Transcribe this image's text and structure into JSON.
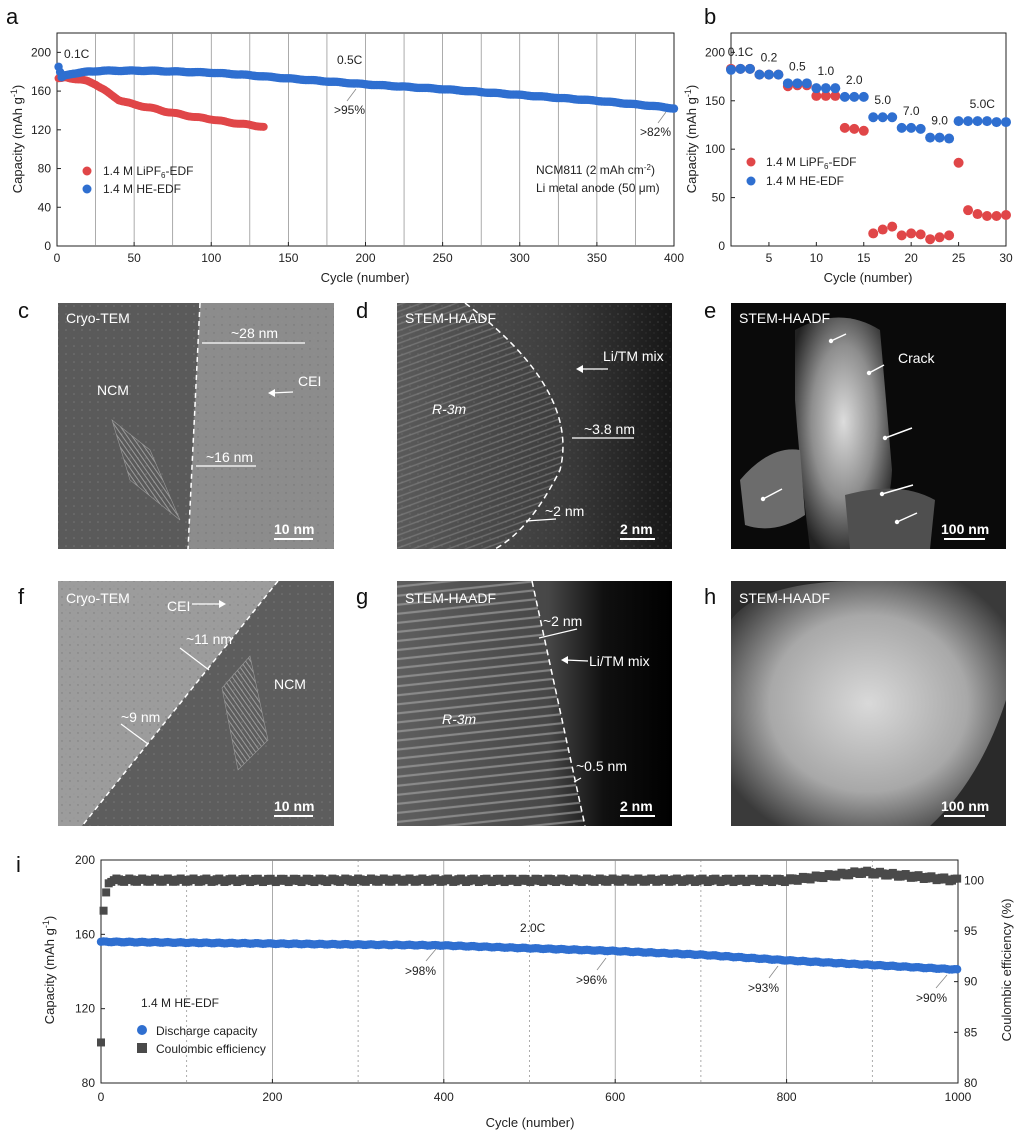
{
  "panels": {
    "a": {
      "label": "a",
      "xlabel": "Cycle (number)",
      "ylabel": "Capacity (mAh g",
      "ylabel_sup": "-1",
      "ylabel_end": ")",
      "xticks": [
        "0",
        "50",
        "100",
        "150",
        "200",
        "250",
        "300",
        "350",
        "400"
      ],
      "yticks": [
        "0",
        "40",
        "80",
        "120",
        "160",
        "200"
      ],
      "annotations": {
        "rate1": "0.1C",
        "rate2": "0.5C",
        "ret1": ">95%",
        "ret2": ">82%"
      },
      "cell_info_1": "NCM811 (2 mAh cm",
      "cell_info_1_sup": "-2",
      "cell_info_1_end": ")",
      "cell_info_2": "Li metal anode (50 μm)"
    },
    "b": {
      "label": "b",
      "xlabel": "Cycle (number)",
      "ylabel": "Capacity (mAh g",
      "ylabel_sup": "-1",
      "ylabel_end": ")",
      "xticks": [
        "5",
        "10",
        "15",
        "20",
        "25",
        "30"
      ],
      "yticks": [
        "0",
        "50",
        "100",
        "150",
        "200"
      ],
      "rates": [
        "0.1C",
        "0.2",
        "0.5",
        "1.0",
        "2.0",
        "5.0",
        "7.0",
        "9.0",
        "5.0C"
      ]
    },
    "c": {
      "label": "c",
      "mode": "Cryo-TEM",
      "material": "NCM",
      "layer": "CEI",
      "thick1": "~28 nm",
      "thick2": "~16 nm",
      "scale": "10 nm"
    },
    "d": {
      "label": "d",
      "mode": "STEM-HAADF",
      "phase": "R-3m",
      "mix": "Li/TM mix",
      "thick1": "~3.8 nm",
      "thick2": "~2 nm",
      "scale": "2 nm"
    },
    "e": {
      "label": "e",
      "mode": "STEM-HAADF",
      "feature": "Crack",
      "scale": "100 nm"
    },
    "f": {
      "label": "f",
      "mode": "Cryo-TEM",
      "material": "NCM",
      "layer": "CEI",
      "thick1": "~11 nm",
      "thick2": "~9 nm",
      "scale": "10 nm"
    },
    "g": {
      "label": "g",
      "mode": "STEM-HAADF",
      "phase": "R-3m",
      "mix": "Li/TM mix",
      "thick1": "~2 nm",
      "thick2": "~0.5 nm",
      "scale": "2 nm"
    },
    "h": {
      "label": "h",
      "mode": "STEM-HAADF",
      "scale": "100 nm"
    },
    "i": {
      "label": "i",
      "xlabel": "Cycle (number)",
      "ylabel": "Capacity (mAh g",
      "ylabel_sup": "-1",
      "ylabel_end": ")",
      "y2label": "Coulombic efficiency (%)",
      "xticks": [
        "0",
        "200",
        "400",
        "600",
        "800",
        "1000"
      ],
      "yticks": [
        "80",
        "120",
        "160",
        "200"
      ],
      "y2ticks": [
        "80",
        "85",
        "90",
        "95",
        "100"
      ],
      "rate": "2.0C",
      "electrolyte": "1.4 M HE-EDF",
      "legend_capacity": "Discharge capacity",
      "legend_ce": "Coulombic efficiency",
      "retentions": [
        ">98%",
        ">96%",
        ">93%",
        ">90%"
      ]
    }
  },
  "legend": {
    "lipf6": "1.4 M LiPF",
    "lipf6_sub": "6",
    "lipf6_end": "-EDF",
    "he": "1.4 M HE-EDF"
  },
  "colors": {
    "red": "#e04648",
    "blue": "#2f6fd0",
    "gray": "#4a4a4a"
  },
  "chart_data": [
    {
      "type": "scatter",
      "panel": "a",
      "xlabel": "Cycle (number)",
      "ylabel": "Capacity (mAh g-1)",
      "xlim": [
        0,
        400
      ],
      "ylim": [
        0,
        220
      ],
      "series": [
        {
          "name": "1.4 M LiPF6-EDF",
          "x": [
            1,
            3,
            5,
            10,
            15,
            20,
            25,
            30,
            35,
            40,
            50,
            60,
            70,
            80,
            90,
            100,
            110,
            120,
            130,
            134
          ],
          "y": [
            173,
            173,
            174,
            173,
            172,
            170,
            167,
            162,
            156,
            151,
            146,
            143,
            139,
            136,
            133,
            131,
            128,
            126,
            124,
            123
          ]
        },
        {
          "name": "1.4 M HE-EDF",
          "x": [
            1,
            3,
            5,
            10,
            20,
            30,
            40,
            50,
            60,
            80,
            100,
            120,
            150,
            200,
            250,
            300,
            350,
            390,
            400
          ],
          "y": [
            185,
            174,
            176,
            178,
            180,
            181,
            181,
            181,
            181,
            180,
            179,
            177,
            173,
            167,
            162,
            156,
            150,
            144,
            142
          ]
        }
      ],
      "annotations": [
        "0.1C",
        "0.5C",
        ">95%",
        ">82%"
      ]
    },
    {
      "type": "scatter",
      "panel": "b",
      "xlabel": "Cycle (number)",
      "ylabel": "Capacity (mAh g-1)",
      "xlim": [
        1,
        30
      ],
      "ylim": [
        0,
        220
      ],
      "series": [
        {
          "name": "1.4 M LiPF6-EDF",
          "x": [
            1,
            2,
            3,
            4,
            5,
            6,
            7,
            8,
            9,
            10,
            11,
            12,
            13,
            14,
            15,
            16,
            17,
            18,
            19,
            20,
            21,
            22,
            23,
            24,
            25,
            26,
            27,
            28,
            29,
            30
          ],
          "y": [
            183,
            183,
            183,
            177,
            177,
            177,
            165,
            166,
            166,
            155,
            155,
            155,
            122,
            121,
            119,
            13,
            17,
            20,
            11,
            13,
            12,
            7,
            9,
            11,
            86,
            37,
            33,
            31,
            31,
            32
          ]
        },
        {
          "name": "1.4 M HE-EDF",
          "x": [
            1,
            2,
            3,
            4,
            5,
            6,
            7,
            8,
            9,
            10,
            11,
            12,
            13,
            14,
            15,
            16,
            17,
            18,
            19,
            20,
            21,
            22,
            23,
            24,
            25,
            26,
            27,
            28,
            29,
            30
          ],
          "y": [
            182,
            183,
            183,
            177,
            177,
            177,
            168,
            168,
            168,
            163,
            163,
            163,
            154,
            154,
            154,
            133,
            133,
            133,
            122,
            122,
            121,
            112,
            112,
            111,
            129,
            129,
            129,
            129,
            128,
            128
          ]
        }
      ],
      "rates": [
        "0.1C",
        "0.2",
        "0.5",
        "1.0",
        "2.0",
        "5.0",
        "7.0",
        "9.0",
        "5.0C"
      ]
    },
    {
      "type": "scatter",
      "panel": "i",
      "xlabel": "Cycle (number)",
      "ylabel": "Capacity (mAh g-1)",
      "y2label": "Coulombic efficiency (%)",
      "xlim": [
        0,
        1000
      ],
      "ylim": [
        80,
        200
      ],
      "y2lim": [
        80,
        102
      ],
      "series": [
        {
          "name": "Discharge capacity",
          "axis": "left",
          "x": [
            0,
            100,
            200,
            300,
            400,
            500,
            600,
            700,
            800,
            900,
            1000
          ],
          "y": [
            156,
            155.5,
            155,
            154.5,
            154,
            152.5,
            151,
            149,
            146,
            143.5,
            141
          ]
        },
        {
          "name": "Coulombic efficiency",
          "axis": "right",
          "x": [
            1,
            3,
            5,
            10,
            50,
            200,
            400,
            600,
            800,
            890,
            1000
          ],
          "y": [
            84,
            97,
            98.5,
            100,
            100,
            100,
            100,
            100,
            100,
            100.8,
            100
          ]
        }
      ],
      "annotations": [
        "2.0C",
        ">98%",
        ">96%",
        ">93%",
        ">90%"
      ]
    }
  ]
}
